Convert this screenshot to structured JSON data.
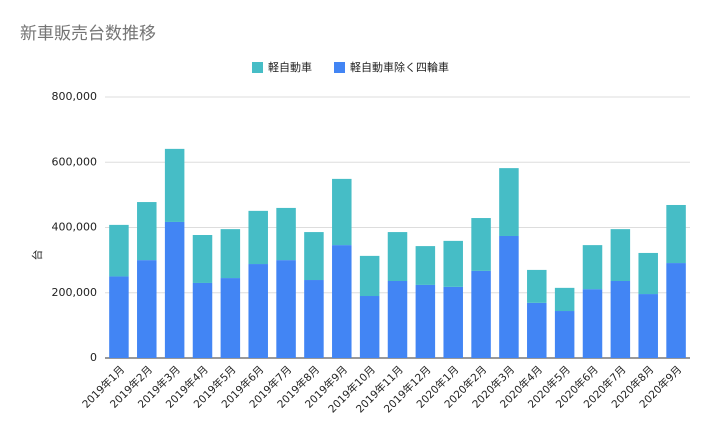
{
  "chart_data": {
    "type": "stacked_bar",
    "title": "新車販売台数推移",
    "y_label": "台",
    "categories": [
      "2019年1月",
      "2019年2月",
      "2019年3月",
      "2019年4月",
      "2019年5月",
      "2019年6月",
      "2019年7月",
      "2019年8月",
      "2019年9月",
      "2019年10月",
      "2019年11月",
      "2019年12月",
      "2020年1月",
      "2020年2月",
      "2020年3月",
      "2020年4月",
      "2020年5月",
      "2020年6月",
      "2020年7月",
      "2020年8月",
      "2020年9月"
    ],
    "series": [
      {
        "name": "軽自動車",
        "color": "#46bdc6",
        "values": [
          158000,
          178000,
          224000,
          147000,
          150000,
          163000,
          160000,
          147000,
          203000,
          123000,
          150000,
          119000,
          141000,
          162000,
          208000,
          101000,
          71000,
          135000,
          159000,
          126000,
          178000
        ]
      },
      {
        "name": "軽自動車除く四輪車",
        "color": "#4285f4",
        "values": [
          250000,
          300000,
          417000,
          230000,
          245000,
          288000,
          300000,
          239000,
          346000,
          190000,
          236000,
          224000,
          218000,
          267000,
          374000,
          169000,
          144000,
          211000,
          236000,
          196000,
          291000
        ]
      }
    ],
    "ylim": [
      0,
      800000
    ],
    "yticks": [
      0,
      {
        "value": 200000,
        "label": "200,000"
      },
      {
        "value": 400000,
        "label": "400,000"
      },
      {
        "value": 600000,
        "label": "600,000"
      },
      {
        "value": 800000,
        "label": "800,000"
      }
    ],
    "grid": true,
    "legend": "top"
  }
}
